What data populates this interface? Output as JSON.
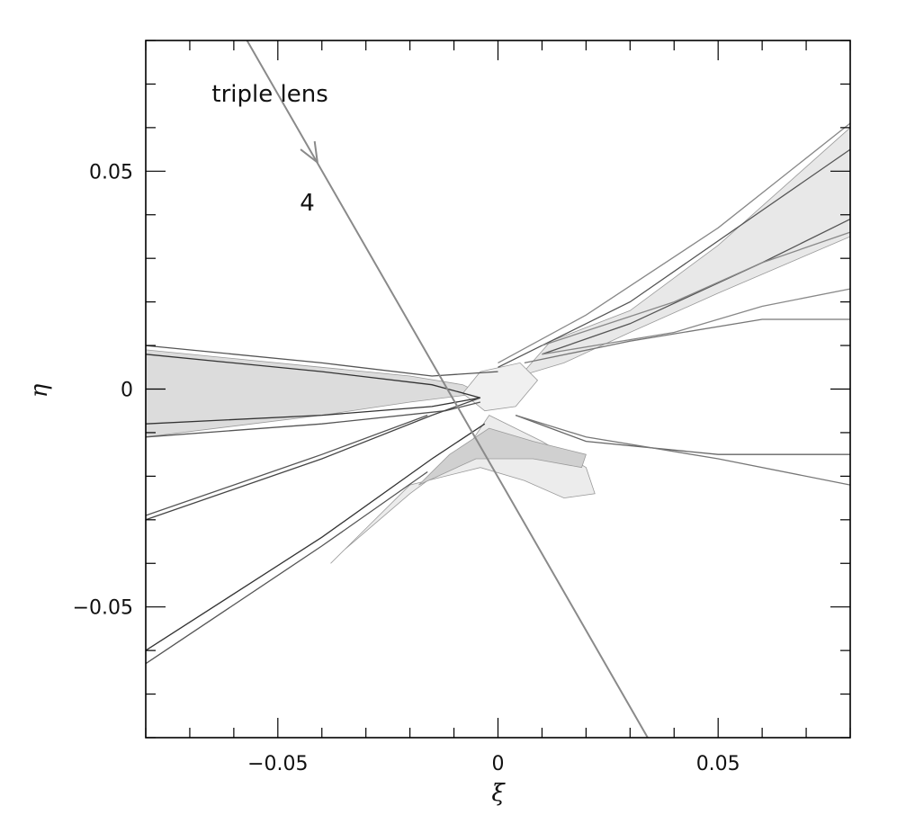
{
  "chart_data": {
    "type": "contour",
    "title": "",
    "xlabel": "ξ",
    "ylabel": "η",
    "xlim": [
      -0.08,
      0.08
    ],
    "ylim": [
      -0.08,
      0.08
    ],
    "xticks": [
      {
        "value": -0.05,
        "label": "−0.05"
      },
      {
        "value": 0,
        "label": "0"
      },
      {
        "value": 0.05,
        "label": "0.05"
      }
    ],
    "yticks": [
      {
        "value": 0.05,
        "label": "0.05"
      },
      {
        "value": 0,
        "label": "0"
      },
      {
        "value": -0.05,
        "label": "−0.05"
      }
    ],
    "minor_step": 0.01,
    "annotations": [
      {
        "text": "triple lens",
        "x": -0.065,
        "y": 0.066
      },
      {
        "text": "4",
        "x": -0.045,
        "y": 0.041
      }
    ],
    "trajectory": {
      "points": [
        [
          -0.057,
          0.08
        ],
        [
          0.034,
          -0.08
        ]
      ],
      "arrow_at": [
        -0.041,
        0.052
      ],
      "color": "#8a8a8a"
    },
    "regions": [
      {
        "fill": "#dcdcdc",
        "points": [
          [
            -0.08,
            0.009
          ],
          [
            -0.04,
            0.005
          ],
          [
            -0.02,
            0.003
          ],
          [
            -0.008,
            0.001
          ],
          [
            -0.004,
            -0.001
          ],
          [
            -0.02,
            -0.003
          ],
          [
            -0.04,
            -0.006
          ],
          [
            -0.08,
            -0.011
          ]
        ]
      },
      {
        "fill": "#e8e8e8",
        "points": [
          [
            0.005,
            0.003
          ],
          [
            0.012,
            0.011
          ],
          [
            0.03,
            0.018
          ],
          [
            0.05,
            0.033
          ],
          [
            0.08,
            0.06
          ],
          [
            0.08,
            0.035
          ],
          [
            0.05,
            0.022
          ],
          [
            0.03,
            0.013
          ],
          [
            0.015,
            0.006
          ]
        ]
      },
      {
        "fill": "#ececec",
        "points": [
          [
            -0.002,
            -0.006
          ],
          [
            0.01,
            -0.012
          ],
          [
            0.02,
            -0.018
          ],
          [
            0.022,
            -0.024
          ],
          [
            0.015,
            -0.025
          ],
          [
            0.006,
            -0.021
          ],
          [
            -0.004,
            -0.018
          ],
          [
            -0.02,
            -0.022
          ],
          [
            -0.03,
            -0.032
          ],
          [
            -0.038,
            -0.04
          ],
          [
            -0.035,
            -0.037
          ],
          [
            -0.02,
            -0.024
          ],
          [
            -0.008,
            -0.015
          ]
        ]
      },
      {
        "fill": "#d0d0d0",
        "points": [
          [
            -0.002,
            -0.009
          ],
          [
            0.008,
            -0.012
          ],
          [
            0.02,
            -0.015
          ],
          [
            0.019,
            -0.018
          ],
          [
            0.008,
            -0.016
          ],
          [
            -0.005,
            -0.016
          ],
          [
            -0.018,
            -0.022
          ],
          [
            -0.011,
            -0.015
          ]
        ]
      },
      {
        "fill": "#f0f0f0",
        "points": [
          [
            -0.004,
            0.004
          ],
          [
            0.005,
            0.006
          ],
          [
            0.009,
            0.002
          ],
          [
            0.004,
            -0.004
          ],
          [
            -0.003,
            -0.005
          ],
          [
            -0.008,
            -0.001
          ]
        ]
      }
    ],
    "contours": [
      {
        "color": "#333333",
        "points": [
          [
            -0.08,
            0.008
          ],
          [
            -0.04,
            0.004
          ],
          [
            -0.015,
            0.001
          ],
          [
            -0.004,
            -0.002
          ],
          [
            -0.015,
            -0.004
          ],
          [
            -0.04,
            -0.006
          ],
          [
            -0.08,
            -0.008
          ]
        ]
      },
      {
        "color": "#555555",
        "points": [
          [
            -0.08,
            0.01
          ],
          [
            -0.04,
            0.006
          ],
          [
            -0.015,
            0.003
          ],
          [
            0.0,
            0.004
          ]
        ]
      },
      {
        "color": "#555555",
        "points": [
          [
            -0.08,
            -0.011
          ],
          [
            -0.04,
            -0.008
          ],
          [
            -0.012,
            -0.005
          ],
          [
            -0.004,
            -0.003
          ]
        ]
      },
      {
        "color": "#444444",
        "points": [
          [
            -0.08,
            -0.03
          ],
          [
            -0.04,
            -0.016
          ],
          [
            -0.015,
            -0.006
          ],
          [
            -0.004,
            -0.002
          ]
        ]
      },
      {
        "color": "#555555",
        "points": [
          [
            -0.08,
            -0.029
          ],
          [
            -0.04,
            -0.015
          ],
          [
            -0.016,
            -0.006
          ]
        ]
      },
      {
        "color": "#333333",
        "points": [
          [
            -0.08,
            -0.06
          ],
          [
            -0.04,
            -0.034
          ],
          [
            -0.015,
            -0.016
          ],
          [
            -0.003,
            -0.008
          ]
        ]
      },
      {
        "color": "#555555",
        "points": [
          [
            -0.08,
            -0.063
          ],
          [
            -0.04,
            -0.036
          ],
          [
            -0.016,
            -0.019
          ]
        ]
      },
      {
        "color": "#666666",
        "points": [
          [
            0.004,
            -0.006
          ],
          [
            0.02,
            -0.012
          ],
          [
            0.05,
            -0.015
          ],
          [
            0.08,
            -0.015
          ]
        ]
      },
      {
        "color": "#777777",
        "points": [
          [
            0.004,
            -0.006
          ],
          [
            0.02,
            -0.011
          ],
          [
            0.05,
            -0.016
          ],
          [
            0.08,
            -0.022
          ]
        ]
      },
      {
        "color": "#555555",
        "points": [
          [
            0.0,
            0.005
          ],
          [
            0.01,
            0.01
          ],
          [
            0.03,
            0.02
          ],
          [
            0.06,
            0.041
          ],
          [
            0.08,
            0.055
          ]
        ]
      },
      {
        "color": "#555555",
        "points": [
          [
            0.01,
            0.008
          ],
          [
            0.03,
            0.015
          ],
          [
            0.06,
            0.029
          ],
          [
            0.08,
            0.039
          ]
        ]
      },
      {
        "color": "#777777",
        "points": [
          [
            0.006,
            0.006
          ],
          [
            0.03,
            0.011
          ],
          [
            0.06,
            0.016
          ],
          [
            0.08,
            0.016
          ]
        ]
      },
      {
        "color": "#888888",
        "points": [
          [
            0.01,
            0.008
          ],
          [
            0.04,
            0.013
          ],
          [
            0.06,
            0.019
          ],
          [
            0.08,
            0.023
          ]
        ]
      },
      {
        "color": "#888888",
        "points": [
          [
            0.0,
            0.006
          ],
          [
            0.02,
            0.017
          ],
          [
            0.05,
            0.037
          ],
          [
            0.08,
            0.061
          ]
        ]
      },
      {
        "color": "#888888",
        "points": [
          [
            0.01,
            0.01
          ],
          [
            0.04,
            0.02
          ],
          [
            0.06,
            0.029
          ],
          [
            0.08,
            0.036
          ]
        ]
      }
    ]
  }
}
